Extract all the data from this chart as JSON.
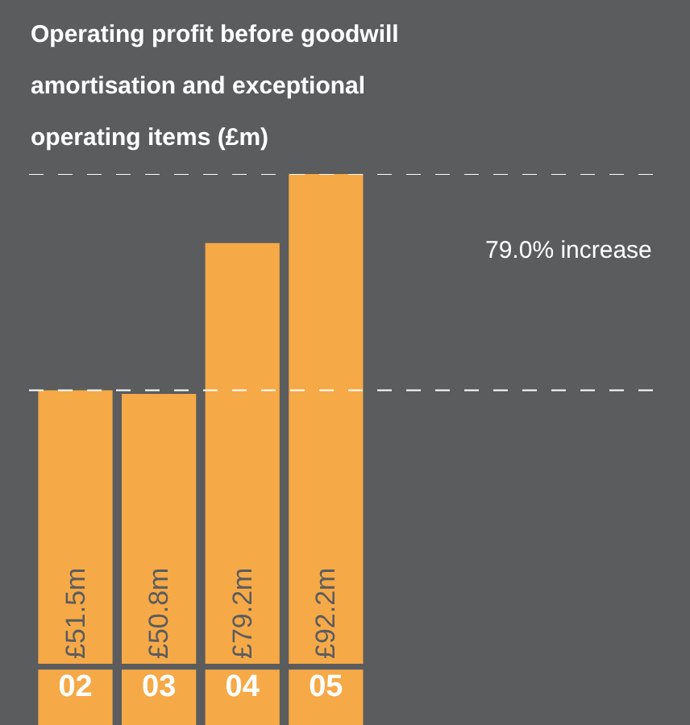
{
  "chart_data": {
    "type": "bar",
    "title": "Operating profit before goodwill amortisation and exceptional operating items (£m)",
    "categories": [
      "02",
      "03",
      "04",
      "05"
    ],
    "values": [
      51.5,
      50.8,
      79.2,
      92.2
    ],
    "value_labels": [
      "£51.5m",
      "£50.8m",
      "£79.2m",
      "£92.2m"
    ],
    "color": "#f6a947",
    "ref_lines": [
      {
        "axis": "y",
        "value": 51.5,
        "line_style": "dashed",
        "color": "#ffffff"
      },
      {
        "axis": "y",
        "value": 92.2,
        "line_style": "dashed",
        "color": "#ffffff"
      }
    ],
    "annotations": [
      "79.0% increase"
    ]
  }
}
